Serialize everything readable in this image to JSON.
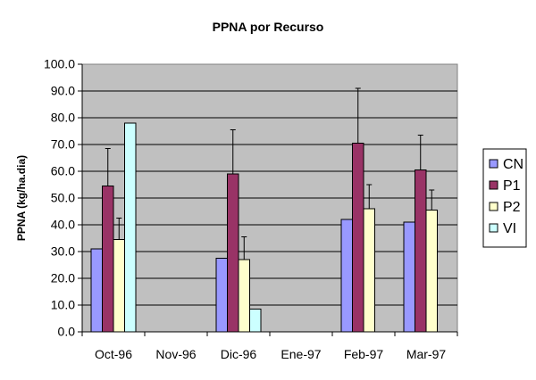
{
  "chart_data": {
    "type": "bar",
    "title": "PPNA por Recurso",
    "xlabel": "",
    "ylabel": "PPNA (kg/ha.dia)",
    "ylim": [
      0,
      100
    ],
    "yticks": [
      "0.0",
      "10.0",
      "20.0",
      "30.0",
      "40.0",
      "50.0",
      "60.0",
      "70.0",
      "80.0",
      "90.0",
      "100.0"
    ],
    "grid": true,
    "plot_background": "#c0c0c0",
    "legend_position": "right",
    "categories": [
      "Oct-96",
      "Nov-96",
      "Dic-96",
      "Ene-97",
      "Feb-97",
      "Mar-97"
    ],
    "series": [
      {
        "name": "CN",
        "color": "#9999ff",
        "values": [
          31.0,
          null,
          27.5,
          null,
          42.0,
          41.0
        ],
        "errors": [
          null,
          null,
          null,
          null,
          null,
          null
        ]
      },
      {
        "name": "P1",
        "color": "#993366",
        "values": [
          54.5,
          null,
          59.0,
          null,
          70.5,
          60.5
        ],
        "errors": [
          14.0,
          null,
          16.5,
          null,
          20.5,
          13.0
        ]
      },
      {
        "name": "P2",
        "color": "#ffffcc",
        "values": [
          34.5,
          null,
          27.0,
          null,
          46.0,
          45.5
        ],
        "errors": [
          8.0,
          null,
          8.5,
          null,
          9.0,
          7.5
        ]
      },
      {
        "name": "VI",
        "color": "#ccffff",
        "values": [
          78.0,
          null,
          8.5,
          null,
          null,
          null
        ],
        "errors": [
          null,
          null,
          null,
          null,
          null,
          null
        ]
      }
    ]
  }
}
